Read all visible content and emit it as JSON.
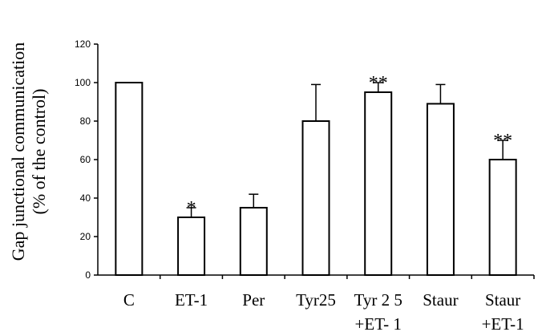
{
  "chart_data": {
    "type": "bar",
    "categories": [
      [
        "C"
      ],
      [
        "ET-1"
      ],
      [
        "Per"
      ],
      [
        "Tyr25"
      ],
      [
        "Tyr 2 5",
        "+ET- 1"
      ],
      [
        "Staur"
      ],
      [
        "Staur",
        "+ET-1"
      ]
    ],
    "values": [
      100,
      30,
      35,
      80,
      95,
      89,
      60
    ],
    "errors": [
      0,
      5,
      7,
      19,
      5,
      10,
      10
    ],
    "significance": [
      "",
      "*",
      "",
      "",
      "**",
      "",
      "**"
    ],
    "ylabel_lines": [
      "Gap junctional communication",
      "(% of the control)"
    ],
    "yticks": [
      0,
      20,
      40,
      60,
      80,
      100,
      120
    ],
    "ylim": [
      0,
      120
    ],
    "grid": false,
    "legend": "none"
  }
}
